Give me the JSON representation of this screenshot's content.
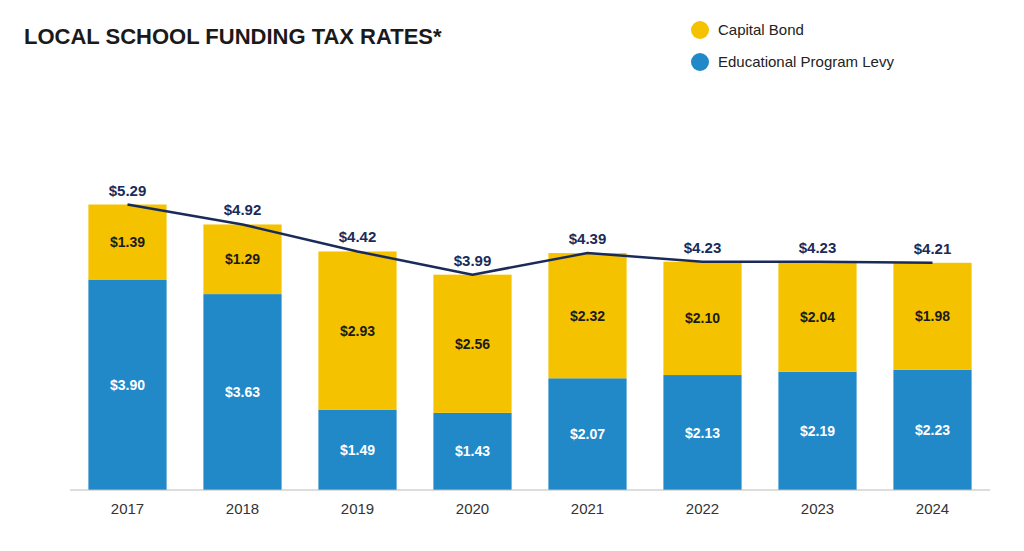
{
  "chart_data": {
    "type": "bar",
    "title": "LOCAL SCHOOL FUNDING TAX RATES*",
    "categories": [
      "2017",
      "2018",
      "2019",
      "2020",
      "2021",
      "2022",
      "2023",
      "2024"
    ],
    "stacked": true,
    "data_labels": true,
    "legend": "upper right",
    "grid": false,
    "tick_labels": "x",
    "ylim": [
      0,
      6.3
    ],
    "series": [
      {
        "name": "Educational Program Levy",
        "type": "bar",
        "color": "#2189C8",
        "values": [
          3.9,
          3.63,
          1.49,
          1.43,
          2.07,
          2.13,
          2.19,
          2.23
        ],
        "value_labels": [
          "$3.90",
          "$3.63",
          "$1.49",
          "$1.43",
          "$2.07",
          "$2.13",
          "$2.19",
          "$2.23"
        ]
      },
      {
        "name": "Capital Bond",
        "type": "bar",
        "color": "#F5C200",
        "values": [
          1.39,
          1.29,
          2.93,
          2.56,
          2.32,
          2.1,
          2.04,
          1.98
        ],
        "value_labels": [
          "$1.39",
          "$1.29",
          "$2.93",
          "$2.56",
          "$2.32",
          "$2.10",
          "$2.04",
          "$1.98"
        ]
      },
      {
        "type": "line",
        "color": "#1A2B5A",
        "values": [
          5.29,
          4.92,
          4.42,
          3.99,
          4.39,
          4.23,
          4.23,
          4.21
        ],
        "value_labels": [
          "$5.29",
          "$4.92",
          "$4.42",
          "$3.99",
          "$4.39",
          "$4.23",
          "$4.23",
          "$4.21"
        ]
      }
    ]
  }
}
